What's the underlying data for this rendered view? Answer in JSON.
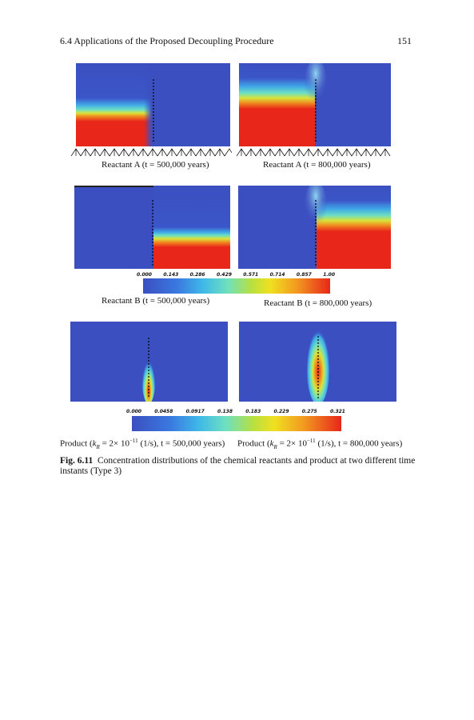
{
  "header": {
    "section_title": "6.4   Applications of the Proposed Decoupling Procedure",
    "page_number": "151"
  },
  "captions": {
    "reactant_a_500": "Reactant A (t = 500,000 years)",
    "reactant_a_800": "Reactant A (t = 800,000 years)",
    "reactant_b_500": "Reactant B (t = 500,000 years)",
    "reactant_b_800": "Reactant B (t = 800,000 years)",
    "product_500_prefix": "Product (",
    "product_800_prefix": "Product (",
    "product_k": "k",
    "product_k_sub": "R",
    "product_mid": " = 2× 10",
    "product_exp": "−11",
    "product_500_suffix": " (1/s), t = 500,000 years)",
    "product_800_suffix": " (1/s), t = 800,000 years)"
  },
  "colorbar_reactant": {
    "ticks": [
      "0.000",
      "0.143",
      "0.286",
      "0.429",
      "0.571",
      "0.714",
      "0.857",
      "1.00"
    ]
  },
  "colorbar_product": {
    "ticks": [
      "0.000",
      "0.0458",
      "0.0917",
      "0.138",
      "0.183",
      "0.229",
      "0.275",
      "0.321"
    ]
  },
  "figure_caption": {
    "label": "Fig. 6.11",
    "text": "Concentration distributions of the chemical reactants and product at two different time instants (Type 3)"
  },
  "colors": {
    "background_blue": "#3b4fc0",
    "high_red": "#e8261a"
  }
}
